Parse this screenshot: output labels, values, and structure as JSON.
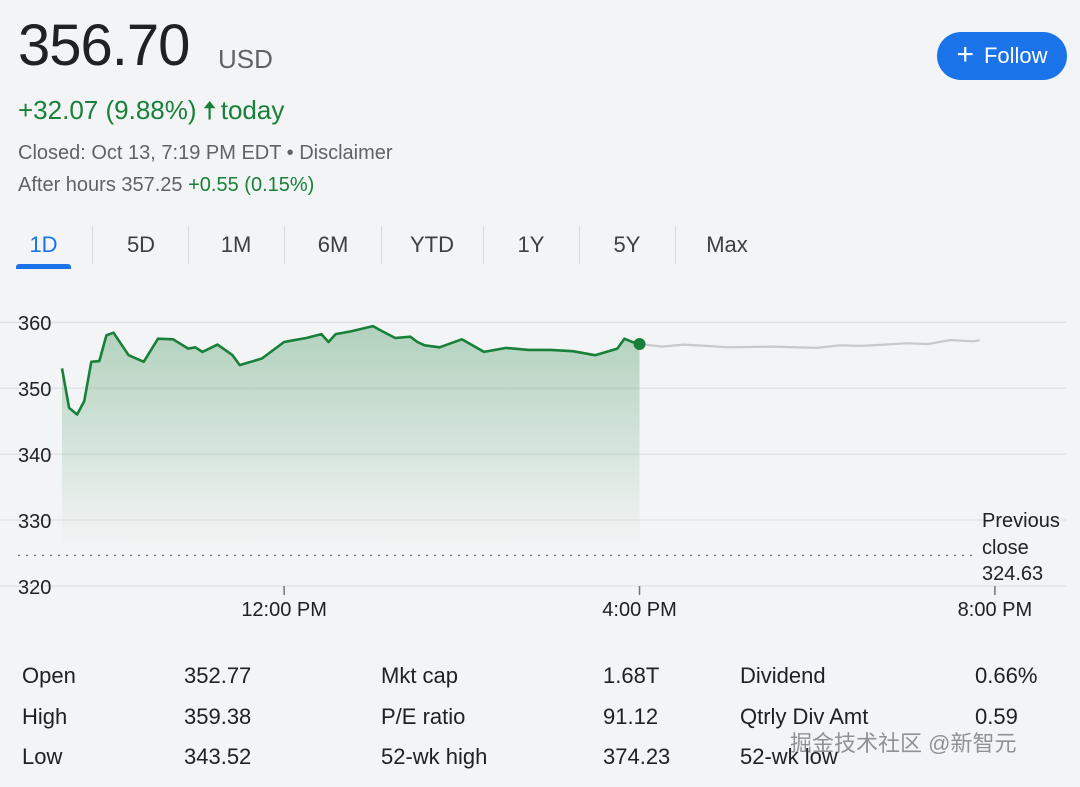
{
  "quote": {
    "price": "356.70",
    "currency": "USD",
    "change_text": "+32.07 (9.88%)",
    "change_arrow": "🠅",
    "change_suffix": "today",
    "closed_text": "Closed: Oct 13, 7:19 PM EDT • Disclaimer",
    "after_hours_label": "After hours 357.25",
    "after_hours_change": "+0.55 (0.15%)"
  },
  "follow_button": {
    "label": "Follow",
    "icon": "plus-icon"
  },
  "tabs": [
    "1D",
    "5D",
    "1M",
    "6M",
    "YTD",
    "1Y",
    "5Y",
    "Max"
  ],
  "active_tab": "1D",
  "colors": {
    "up": "#188038",
    "accent": "#1a73e8",
    "after_hours_line": "#c7c9cc"
  },
  "chart_data": {
    "type": "line",
    "y_ticks": [
      "360",
      "350",
      "340",
      "330",
      "320"
    ],
    "ylim": [
      320,
      362
    ],
    "x_ticks": [
      "12:00 PM",
      "4:00 PM",
      "8:00 PM"
    ],
    "x_tick_hours": [
      12,
      16,
      20
    ],
    "xlim_hours": [
      9.5,
      20.8
    ],
    "previous_close": {
      "label_lines": [
        "Previous",
        "close",
        "324.63"
      ],
      "value": 324.63
    },
    "grid": true,
    "series": [
      {
        "session": "regular",
        "x_hours": [
          9.5,
          9.58,
          9.67,
          9.75,
          9.83,
          9.92,
          10.0,
          10.08,
          10.25,
          10.42,
          10.58,
          10.75,
          10.92,
          11.0,
          11.08,
          11.25,
          11.42,
          11.5,
          11.75,
          12.0,
          12.08,
          12.25,
          12.42,
          12.5,
          12.58,
          12.75,
          13.0,
          13.08,
          13.25,
          13.42,
          13.5,
          13.58,
          13.75,
          14.0,
          14.25,
          14.5,
          14.75,
          15.0,
          15.25,
          15.5,
          15.75,
          15.83,
          15.92,
          16.0
        ],
        "values": [
          353.0,
          347.0,
          346.0,
          348.0,
          354.0,
          354.1,
          358.0,
          358.4,
          355.0,
          354.0,
          357.5,
          357.4,
          356.0,
          356.2,
          355.5,
          356.6,
          355.0,
          353.5,
          354.5,
          357.0,
          357.2,
          357.6,
          358.2,
          357.0,
          358.2,
          358.6,
          359.4,
          358.8,
          357.6,
          357.8,
          357.0,
          356.5,
          356.2,
          357.4,
          355.5,
          356.1,
          355.8,
          355.8,
          355.6,
          355.0,
          356.0,
          357.5,
          357.0,
          356.7
        ]
      },
      {
        "session": "after_hours",
        "x_hours": [
          16.0,
          16.25,
          16.5,
          16.75,
          17.0,
          17.5,
          18.0,
          18.25,
          18.5,
          18.75,
          19.0,
          19.25,
          19.5,
          19.75,
          19.83
        ],
        "values": [
          356.7,
          356.3,
          356.6,
          356.4,
          356.2,
          356.3,
          356.1,
          356.5,
          356.4,
          356.6,
          356.8,
          356.7,
          357.3,
          357.1,
          357.25
        ]
      }
    ]
  },
  "stats": [
    {
      "label": "Open",
      "value": "352.77"
    },
    {
      "label": "High",
      "value": "359.38"
    },
    {
      "label": "Low",
      "value": "343.52"
    },
    {
      "label": "Mkt cap",
      "value": "1.68T"
    },
    {
      "label": "P/E ratio",
      "value": "91.12"
    },
    {
      "label": "52-wk high",
      "value": "374.23"
    },
    {
      "label": "Dividend",
      "value": "0.66%"
    },
    {
      "label": "Qtrly Div Amt",
      "value": "0.59"
    },
    {
      "label": "52-wk low",
      "value": ""
    }
  ],
  "watermark": "掘金技术社区 @新智元"
}
